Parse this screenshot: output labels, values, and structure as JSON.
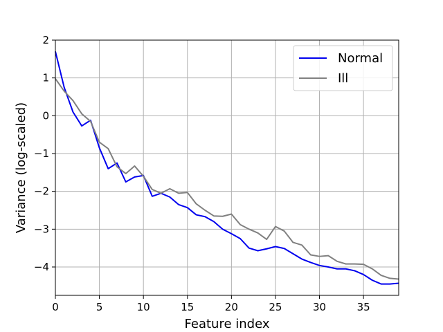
{
  "chart_data": {
    "type": "line",
    "title": "",
    "xlabel": "Feature index",
    "ylabel": "Variance (log-scaled)",
    "xlim": [
      0,
      39
    ],
    "ylim": [
      -4.75,
      2
    ],
    "xticks": [
      0,
      5,
      10,
      15,
      20,
      25,
      30,
      35
    ],
    "yticks": [
      2,
      1,
      0,
      -1,
      -2,
      -3,
      -4
    ],
    "xtick_labels": [
      "0",
      "5",
      "10",
      "15",
      "20",
      "25",
      "30",
      "35"
    ],
    "ytick_labels": [
      "2",
      "1",
      "0",
      "−1",
      "−2",
      "−3",
      "−4"
    ],
    "grid": true,
    "legend_position": "top-right",
    "x": [
      0,
      1,
      2,
      3,
      4,
      5,
      6,
      7,
      8,
      9,
      10,
      11,
      12,
      13,
      14,
      15,
      16,
      17,
      18,
      19,
      20,
      21,
      22,
      23,
      24,
      25,
      26,
      27,
      28,
      29,
      30,
      31,
      32,
      33,
      34,
      35,
      36,
      37,
      38,
      39
    ],
    "series": [
      {
        "name": "Normal",
        "color": "#0000ee",
        "values": [
          1.7,
          0.75,
          0.1,
          -0.27,
          -0.12,
          -0.85,
          -1.4,
          -1.25,
          -1.75,
          -1.62,
          -1.58,
          -2.13,
          -2.05,
          -2.15,
          -2.35,
          -2.43,
          -2.62,
          -2.67,
          -2.8,
          -3.0,
          -3.12,
          -3.25,
          -3.5,
          -3.57,
          -3.52,
          -3.46,
          -3.51,
          -3.65,
          -3.79,
          -3.88,
          -3.96,
          -4.0,
          -4.05,
          -4.05,
          -4.1,
          -4.2,
          -4.35,
          -4.45,
          -4.45,
          -4.43
        ]
      },
      {
        "name": "Ill",
        "color": "#808080",
        "values": [
          0.98,
          0.65,
          0.4,
          0.05,
          -0.15,
          -0.7,
          -0.87,
          -1.35,
          -1.53,
          -1.33,
          -1.6,
          -1.95,
          -2.05,
          -1.93,
          -2.05,
          -2.03,
          -2.33,
          -2.5,
          -2.65,
          -2.66,
          -2.6,
          -2.88,
          -3.0,
          -3.1,
          -3.27,
          -2.93,
          -3.05,
          -3.35,
          -3.42,
          -3.68,
          -3.72,
          -3.7,
          -3.85,
          -3.92,
          -3.92,
          -3.93,
          -4.05,
          -4.22,
          -4.3,
          -4.32
        ]
      }
    ]
  }
}
